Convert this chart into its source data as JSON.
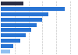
{
  "values": [
    16.0,
    46.0,
    34.0,
    30.0,
    26.0,
    22.0,
    18.0,
    14.0,
    9.0,
    6.5
  ],
  "bar_colors": [
    "#2b2d42",
    "#2874d4",
    "#2874d4",
    "#2874d4",
    "#2874d4",
    "#2874d4",
    "#2874d4",
    "#2874d4",
    "#2874d4",
    "#90c0f0"
  ],
  "xlim": [
    0,
    55
  ],
  "background_color": "#ffffff",
  "grid_color": "#c8c8c8"
}
